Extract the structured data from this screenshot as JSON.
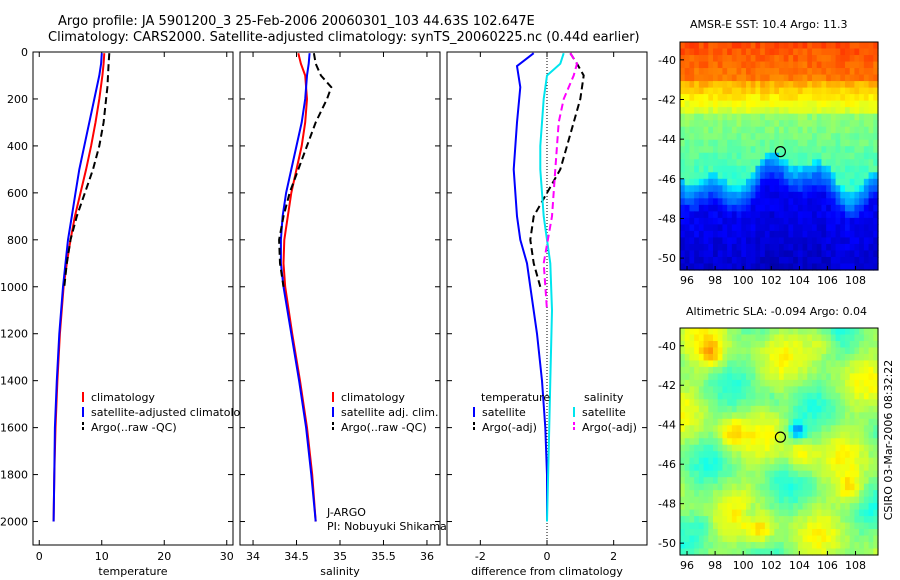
{
  "header": {
    "line1": "Argo profile: JA 5901200_3 25-Feb-2006 20060301_103 44.63S 102.647E",
    "line2": "Climatology: CARS2000. Satellite-adjusted climatology: synTS_20060225.nc (0.44d earlier)"
  },
  "sst_map": {
    "title": "AMSR-E SST: 10.4 Argo: 11.3",
    "x_ticks": [
      "96",
      "98",
      "100",
      "102",
      "104",
      "106",
      "108"
    ],
    "y_ticks": [
      "-40",
      "-42",
      "-44",
      "-46",
      "-48",
      "-50"
    ],
    "float_lon": 102.65,
    "float_lat": -44.63
  },
  "sla_map": {
    "title": "Altimetric SLA: -0.094 Argo: 0.04",
    "x_ticks": [
      "96",
      "98",
      "100",
      "102",
      "104",
      "106",
      "108"
    ],
    "y_ticks": [
      "-40",
      "-42",
      "-44",
      "-46",
      "-48",
      "-50"
    ],
    "float_lon": 102.65,
    "float_lat": -44.63
  },
  "side_label": "CSIRO 03-Mar-2006 08:32:22",
  "chart_data": [
    {
      "type": "line",
      "xlabel": "temperature",
      "xlim": [
        -1,
        31
      ],
      "ylim": [
        2100,
        0
      ],
      "x_ticks": [
        "0",
        "10",
        "20",
        "30"
      ],
      "y_ticks": [
        "0",
        "200",
        "400",
        "600",
        "800",
        "1000",
        "1200",
        "1400",
        "1600",
        "1800",
        "2000"
      ],
      "legend": [
        "climatology",
        "satellite-adjusted climatology",
        "Argo(..raw -QC)"
      ],
      "series": [
        {
          "name": "climatology",
          "color": "#ff0000",
          "style": "solid",
          "depth": [
            5,
            50,
            100,
            200,
            300,
            400,
            500,
            600,
            700,
            800,
            900,
            1000,
            1200,
            1400,
            1600,
            1800,
            2000
          ],
          "values": [
            10.4,
            10.3,
            10.1,
            9.6,
            9.0,
            8.3,
            7.5,
            6.6,
            5.7,
            5.0,
            4.4,
            3.9,
            3.3,
            2.9,
            2.6,
            2.4,
            2.3
          ]
        },
        {
          "name": "satellite-adjusted climatology",
          "color": "#0000ff",
          "style": "solid",
          "depth": [
            5,
            50,
            100,
            200,
            300,
            400,
            500,
            600,
            700,
            800,
            900,
            1000,
            1200,
            1400,
            1600,
            1800,
            2000
          ],
          "values": [
            10.0,
            9.9,
            9.6,
            8.8,
            8.0,
            7.2,
            6.4,
            5.8,
            5.2,
            4.6,
            4.2,
            3.8,
            3.2,
            2.8,
            2.5,
            2.4,
            2.3
          ]
        },
        {
          "name": "Argo(..raw -QC)",
          "color": "#000000",
          "style": "dash",
          "depth": [
            5,
            50,
            100,
            150,
            200,
            300,
            400,
            500,
            600,
            700,
            800,
            900,
            1000
          ],
          "values": [
            11.2,
            11.1,
            11.0,
            10.9,
            10.7,
            10.3,
            9.6,
            8.6,
            7.3,
            6.0,
            5.0,
            4.4,
            4.0
          ]
        }
      ]
    },
    {
      "type": "line",
      "xlabel": "salinity",
      "xlim": [
        33.85,
        36.15
      ],
      "ylim": [
        2100,
        0
      ],
      "x_ticks": [
        "34",
        "34.5",
        "35",
        "35.5",
        "36"
      ],
      "legend": [
        "climatology",
        "satellite adj. clim.",
        "Argo(..raw -QC)"
      ],
      "annotation": [
        "J-ARGO",
        "PI: Nobuyuki Shikama"
      ],
      "series": [
        {
          "name": "climatology",
          "color": "#ff0000",
          "style": "solid",
          "depth": [
            5,
            50,
            100,
            200,
            300,
            400,
            500,
            600,
            700,
            800,
            900,
            1000,
            1200,
            1400,
            1600,
            1800,
            2000
          ],
          "values": [
            34.52,
            34.55,
            34.6,
            34.62,
            34.6,
            34.56,
            34.5,
            34.44,
            34.4,
            34.36,
            34.35,
            34.37,
            34.45,
            34.54,
            34.62,
            34.68,
            34.72
          ]
        },
        {
          "name": "satellite adj. clim.",
          "color": "#0000ff",
          "style": "solid",
          "depth": [
            5,
            50,
            100,
            200,
            300,
            400,
            500,
            600,
            700,
            800,
            900,
            1000,
            1200,
            1400,
            1600,
            1800,
            2000
          ],
          "values": [
            34.65,
            34.64,
            34.62,
            34.6,
            34.56,
            34.5,
            34.44,
            34.38,
            34.34,
            34.32,
            34.32,
            34.35,
            34.44,
            34.53,
            34.61,
            34.67,
            34.72
          ]
        },
        {
          "name": "Argo(..raw -QC)",
          "color": "#000000",
          "style": "dash",
          "depth": [
            5,
            50,
            100,
            150,
            200,
            300,
            400,
            500,
            600,
            700,
            800,
            900,
            1000
          ],
          "values": [
            34.7,
            34.72,
            34.78,
            34.9,
            34.85,
            34.72,
            34.62,
            34.52,
            34.42,
            34.35,
            34.3,
            34.31,
            34.35
          ]
        }
      ]
    },
    {
      "type": "line",
      "xlabel": "difference from climatology",
      "xlim": [
        -3,
        3
      ],
      "ylim": [
        2100,
        0
      ],
      "x_ticks": [
        "-2",
        "0",
        "2"
      ],
      "legend_headers": [
        "temperature",
        "salinity"
      ],
      "legend": [
        "satellite",
        "Argo(-adj)",
        "satellite",
        "Argo(-adj)"
      ],
      "series": [
        {
          "name": "temperature satellite",
          "color": "#0000ff",
          "style": "solid",
          "depth": [
            5,
            60,
            150,
            300,
            500,
            700,
            800,
            900,
            1000,
            1200,
            1400,
            1600,
            1800,
            2000
          ],
          "values": [
            -0.4,
            -0.9,
            -0.8,
            -0.9,
            -1.0,
            -0.9,
            -0.8,
            -0.6,
            -0.5,
            -0.3,
            -0.15,
            -0.05,
            0.0,
            0.0
          ]
        },
        {
          "name": "temperature Argo(-adj)",
          "color": "#000000",
          "style": "dash",
          "depth": [
            5,
            50,
            100,
            200,
            300,
            400,
            500,
            600,
            700,
            800,
            900,
            1000
          ],
          "values": [
            0.7,
            0.9,
            1.1,
            1.0,
            0.8,
            0.6,
            0.4,
            0.0,
            -0.4,
            -0.5,
            -0.4,
            -0.2
          ]
        },
        {
          "name": "salinity satellite",
          "color": "#00e5ee",
          "style": "solid",
          "depth": [
            5,
            50,
            100,
            200,
            300,
            400,
            500,
            700,
            900,
            1100,
            1400,
            1700,
            2000
          ],
          "values": [
            0.5,
            0.4,
            0.0,
            -0.1,
            -0.15,
            -0.2,
            -0.2,
            -0.1,
            0.1,
            0.15,
            0.1,
            0.05,
            0.0
          ]
        },
        {
          "name": "salinity Argo(-adj)",
          "color": "#ff00ff",
          "style": "dash",
          "depth": [
            5,
            50,
            100,
            200,
            300,
            400,
            500,
            700,
            900,
            1100
          ],
          "values": [
            0.7,
            0.9,
            0.8,
            0.5,
            0.35,
            0.3,
            0.25,
            0.15,
            -0.1,
            0.0
          ]
        }
      ]
    }
  ]
}
